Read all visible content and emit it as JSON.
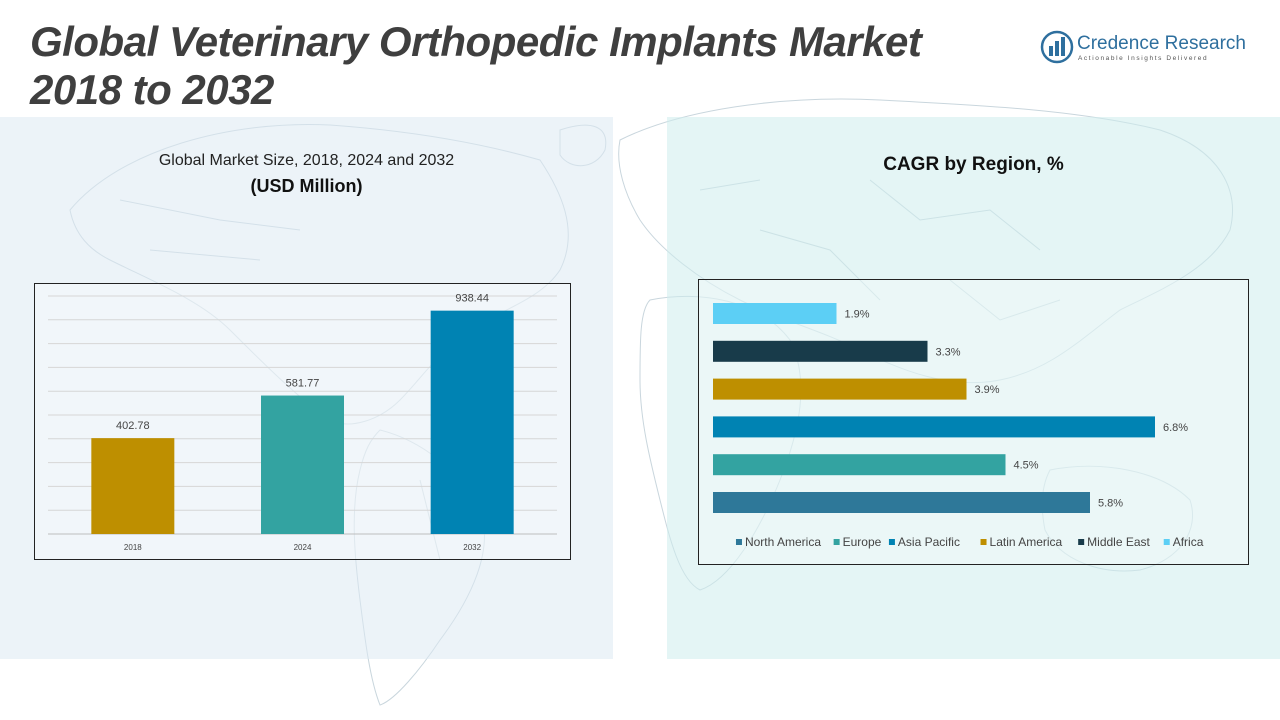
{
  "header": {
    "title_line1": "Global Veterinary Orthopedic Implants Market",
    "title_line2": "2018 to 2032"
  },
  "logo": {
    "name": "Credence Research",
    "tagline": "Actionable Insights Delivered",
    "icon": "bar-chart-circle-icon"
  },
  "left_panel": {
    "subtitle": "Global Market Size, 2018, 2024 and 2032",
    "unit": "(USD Million)"
  },
  "right_panel": {
    "title": "CAGR by Region, %"
  },
  "colors": {
    "mustard": "#BE8F00",
    "teal": "#33A3A1",
    "blue": "#0083B3",
    "steel": "#2E7899",
    "dark": "#183B4A",
    "sky": "#5CCFF5"
  },
  "chart_data": [
    {
      "type": "bar",
      "categories": [
        "2018",
        "2024",
        "2032"
      ],
      "values": [
        402.78,
        581.77,
        938.44
      ],
      "value_labels": [
        "402.78",
        "581.77",
        "938.44"
      ],
      "colors": [
        "#BE8F00",
        "#33A3A1",
        "#0083B3"
      ],
      "ylim": [
        0,
        1000
      ],
      "grid": true
    },
    {
      "type": "bar",
      "orientation": "horizontal",
      "categories": [
        "North America",
        "Europe",
        "Asia Pacific",
        "Latin America",
        "Middle East",
        "Africa"
      ],
      "values": [
        5.8,
        4.5,
        6.8,
        3.9,
        3.3,
        1.9
      ],
      "value_labels": [
        "5.8%",
        "4.5%",
        "6.8%",
        "3.9%",
        "3.3%",
        "1.9%"
      ],
      "colors": [
        "#2E7899",
        "#33A3A1",
        "#0083B3",
        "#BE8F00",
        "#183B4A",
        "#5CCFF5"
      ],
      "xlim": [
        0,
        7
      ],
      "legend": "bottom"
    }
  ]
}
